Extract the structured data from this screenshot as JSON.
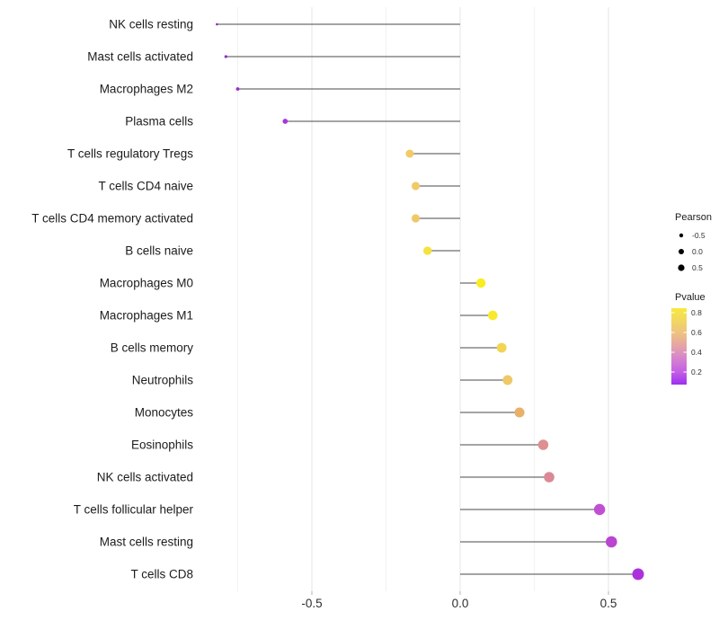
{
  "chart_data": {
    "type": "scatter",
    "subtype": "lollipop",
    "title": "",
    "xlabel": "",
    "ylabel": "",
    "xlim": [
      -0.89,
      0.7
    ],
    "grid": true,
    "x_major_ticks": [
      -0.5,
      0.0,
      0.5
    ],
    "x_major_tick_labels": [
      "-0.5",
      "0.0",
      "0.5"
    ],
    "x_minor_ticks": [
      -0.75,
      -0.25,
      0.25
    ],
    "categories": [
      "NK cells resting",
      "Mast cells activated",
      "Macrophages M2",
      "Plasma cells",
      "T cells regulatory  Tregs",
      "T cells CD4 naive",
      "T cells CD4 memory activated",
      "B cells naive",
      "Macrophages M0",
      "Macrophages M1",
      "B cells memory",
      "Neutrophils",
      "Monocytes",
      "Eosinophils",
      "NK cells activated",
      "T cells follicular helper",
      "Mast cells resting",
      "T cells CD8"
    ],
    "points": [
      {
        "label": "NK cells resting",
        "pearson": -0.82,
        "pvalue": 0.07,
        "color": "#8c25bb"
      },
      {
        "label": "Mast cells activated",
        "pearson": -0.79,
        "pvalue": 0.09,
        "color": "#9429c3"
      },
      {
        "label": "Macrophages M2",
        "pearson": -0.75,
        "pvalue": 0.1,
        "color": "#9b2ccb"
      },
      {
        "label": "Plasma cells",
        "pearson": -0.59,
        "pvalue": 0.14,
        "color": "#a935d8"
      },
      {
        "label": "T cells regulatory  Tregs",
        "pearson": -0.17,
        "pvalue": 0.65,
        "color": "#f0cb66"
      },
      {
        "label": "T cells CD4 naive",
        "pearson": -0.15,
        "pvalue": 0.64,
        "color": "#f0ca68"
      },
      {
        "label": "T cells CD4 memory activated",
        "pearson": -0.15,
        "pvalue": 0.64,
        "color": "#efc967"
      },
      {
        "label": "B cells naive",
        "pearson": -0.11,
        "pvalue": 0.78,
        "color": "#f5e23e"
      },
      {
        "label": "Macrophages M0",
        "pearson": 0.07,
        "pvalue": 0.85,
        "color": "#f9ec20"
      },
      {
        "label": "Macrophages M1",
        "pearson": 0.11,
        "pvalue": 0.82,
        "color": "#f8e92c"
      },
      {
        "label": "B cells memory",
        "pearson": 0.14,
        "pvalue": 0.72,
        "color": "#f1d553"
      },
      {
        "label": "Neutrophils",
        "pearson": 0.16,
        "pvalue": 0.68,
        "color": "#eec967"
      },
      {
        "label": "Monocytes",
        "pearson": 0.2,
        "pvalue": 0.55,
        "color": "#e8b069"
      },
      {
        "label": "Eosinophils",
        "pearson": 0.28,
        "pvalue": 0.42,
        "color": "#dd8f92"
      },
      {
        "label": "NK cells activated",
        "pearson": 0.3,
        "pvalue": 0.41,
        "color": "#da8a95"
      },
      {
        "label": "T cells follicular helper",
        "pearson": 0.47,
        "pvalue": 0.22,
        "color": "#c04fd2"
      },
      {
        "label": "Mast cells resting",
        "pearson": 0.51,
        "pvalue": 0.19,
        "color": "#bb45d1"
      },
      {
        "label": "T cells CD8",
        "pearson": 0.6,
        "pvalue": 0.13,
        "color": "#ac31dc"
      }
    ],
    "legend": {
      "position": "right",
      "size_legend": {
        "title": "Pearson",
        "entries": [
          {
            "label": "-0.5",
            "value": -0.5
          },
          {
            "label": "0.0",
            "value": 0.0
          },
          {
            "label": "0.5",
            "value": 0.5
          }
        ],
        "dot_color": "#000000"
      },
      "color_legend": {
        "title": "Pvalue",
        "tick_labels": [
          "0.8",
          "0.6",
          "0.4",
          "0.2"
        ],
        "tick_values": [
          0.8,
          0.6,
          0.4,
          0.2
        ],
        "top_value": 0.845,
        "bottom_value": 0.073,
        "gradient_top_to_bottom": [
          "#f7e93c",
          "#f2d763",
          "#eec083",
          "#e4a3a8",
          "#d581cf",
          "#c45fe4",
          "#9d2ff0"
        ]
      }
    }
  },
  "colors": {
    "background": "#ffffff",
    "stem": "#4a4a4a",
    "grid_major": "#e5e5e5",
    "grid_minor": "#f2f2f2",
    "axis_tick": "#b3b3b3",
    "category_text": "#1c1c1c",
    "tick_text": "#2e2e2e",
    "legend_title_text": "#1c1c1c",
    "legend_label_text": "#2e2e2e"
  }
}
